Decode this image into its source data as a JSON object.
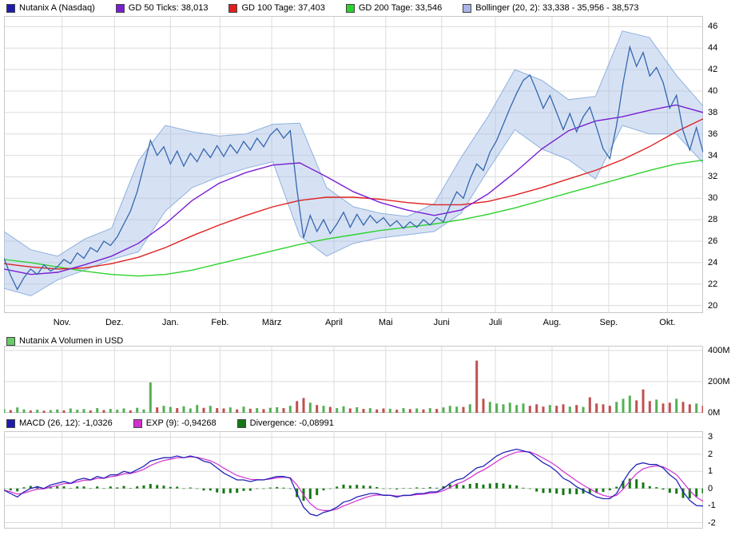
{
  "legend_price": {
    "items": [
      {
        "label": "Nutanix A (Nasdaq)",
        "color": "#1c1cb0"
      },
      {
        "label": "GD 50 Ticks: 38,013",
        "color": "#7a1ed2"
      },
      {
        "label": "GD 100 Tage: 37,403",
        "color": "#e02020"
      },
      {
        "label": "GD 200 Tage: 33,546",
        "color": "#2dd22d"
      },
      {
        "label": "Bollinger (20, 2): 33,338 - 35,956 - 38,573",
        "color": "#aab4e6"
      }
    ]
  },
  "legend_volume": {
    "items": [
      {
        "label": "Nutanix A Volumen in USD",
        "color": "#66cc66"
      }
    ]
  },
  "legend_macd": {
    "items": [
      {
        "label": "MACD (26, 12): -1,0326",
        "color": "#1c1cb0"
      },
      {
        "label": "EXP (9): -0,94268",
        "color": "#d030d0"
      },
      {
        "label": "Divergence: -0,08991",
        "color": "#157815"
      }
    ]
  },
  "chart_data": {
    "type": "line",
    "title": "Nutanix A (Nasdaq) chart with GD50/GD100/GD200, Bollinger bands, volume and MACD",
    "grid_color": "#dcdcdc",
    "border_color": "#c8c8c8",
    "months": [
      {
        "label": "Nov.",
        "f": 0.083
      },
      {
        "label": "Dez.",
        "f": 0.158
      },
      {
        "label": "Jan.",
        "f": 0.238
      },
      {
        "label": "Feb.",
        "f": 0.309
      },
      {
        "label": "März",
        "f": 0.383
      },
      {
        "label": "April",
        "f": 0.472
      },
      {
        "label": "Mai",
        "f": 0.546
      },
      {
        "label": "Juni",
        "f": 0.626
      },
      {
        "label": "Juli",
        "f": 0.703
      },
      {
        "label": "Aug.",
        "f": 0.784
      },
      {
        "label": "Sep.",
        "f": 0.865
      },
      {
        "label": "Okt.",
        "f": 0.949
      }
    ],
    "panels": {
      "price": {
        "ylim": [
          19.3,
          47.0
        ],
        "yticks": [
          {
            "v": 46,
            "label": "46"
          },
          {
            "v": 44,
            "label": "44"
          },
          {
            "v": 42,
            "label": "42"
          },
          {
            "v": 40,
            "label": "40"
          },
          {
            "v": 38,
            "label": "38"
          },
          {
            "v": 36,
            "label": "36"
          },
          {
            "v": 34,
            "label": "34"
          },
          {
            "v": 32,
            "label": "32"
          },
          {
            "v": 30,
            "label": "30"
          },
          {
            "v": 28,
            "label": "28"
          },
          {
            "v": 26,
            "label": "26"
          },
          {
            "v": 24,
            "label": "24"
          },
          {
            "v": 22,
            "label": "22"
          },
          {
            "v": 20,
            "label": "20"
          }
        ],
        "colors": {
          "price": "#3566ad",
          "gd50": "#7a1ed2",
          "gd100": "#e02020",
          "gd200": "#2dd22d",
          "boll_fill": "#a5bee6",
          "boll_edge": "#8fb0dd"
        },
        "series": {
          "price": [
            24.4,
            22.8,
            21.5,
            22.6,
            23.4,
            22.9,
            23.8,
            23.2,
            23.6,
            24.3,
            23.9,
            24.9,
            24.4,
            25.4,
            25.0,
            26.0,
            25.6,
            26.4,
            27.6,
            28.8,
            30.6,
            33.0,
            35.4,
            34.0,
            34.8,
            33.2,
            34.4,
            33.0,
            34.2,
            33.4,
            34.6,
            33.8,
            34.9,
            33.9,
            35.0,
            34.2,
            35.3,
            34.5,
            35.6,
            34.8,
            35.9,
            36.5,
            35.6,
            36.3,
            30.8,
            26.3,
            28.4,
            26.9,
            28.0,
            26.7,
            27.6,
            28.7,
            27.3,
            28.5,
            27.5,
            28.4,
            27.7,
            28.2,
            27.4,
            27.9,
            27.2,
            27.8,
            27.3,
            28.0,
            27.5,
            28.2,
            27.8,
            29.3,
            30.6,
            30.0,
            31.8,
            33.2,
            32.6,
            34.3,
            35.4,
            36.9,
            38.4,
            39.8,
            41.0,
            41.5,
            40.0,
            38.4,
            39.6,
            38.0,
            36.4,
            37.9,
            36.2,
            37.6,
            38.5,
            36.6,
            34.6,
            33.7,
            36.8,
            40.8,
            44.1,
            42.3,
            43.6,
            41.4,
            42.2,
            40.8,
            38.4,
            39.6,
            36.3,
            34.5,
            36.6,
            34.3
          ],
          "gd50": [
            23.4,
            22.9,
            23.1,
            23.8,
            24.6,
            25.8,
            27.6,
            29.8,
            31.4,
            32.4,
            33.1,
            33.3,
            32.0,
            30.6,
            29.6,
            28.9,
            28.4,
            28.9,
            30.4,
            32.4,
            34.6,
            36.3,
            37.2,
            37.6,
            38.2,
            38.7,
            38.0
          ],
          "gd100": [
            23.9,
            23.6,
            23.4,
            23.5,
            23.9,
            24.5,
            25.4,
            26.5,
            27.5,
            28.4,
            29.2,
            29.8,
            30.1,
            30.1,
            29.9,
            29.6,
            29.4,
            29.4,
            29.7,
            30.3,
            31.0,
            31.8,
            32.6,
            33.6,
            34.8,
            36.2,
            37.4
          ],
          "gd200": [
            24.3,
            24.0,
            23.6,
            23.2,
            22.9,
            22.75,
            22.9,
            23.3,
            23.9,
            24.5,
            25.1,
            25.7,
            26.2,
            26.6,
            27.0,
            27.3,
            27.6,
            28.0,
            28.5,
            29.1,
            29.8,
            30.5,
            31.2,
            31.9,
            32.6,
            33.2,
            33.55
          ],
          "boll_upper": [
            26.9,
            25.2,
            24.6,
            26.2,
            27.2,
            33.5,
            36.8,
            36.2,
            35.8,
            36.0,
            36.9,
            37.0,
            31.0,
            29.2,
            28.6,
            28.3,
            29.5,
            33.8,
            37.6,
            42.0,
            41.0,
            39.2,
            39.5,
            45.6,
            45.0,
            41.5,
            38.6
          ],
          "boll_lower": [
            21.6,
            20.9,
            22.4,
            23.3,
            24.3,
            25.0,
            28.8,
            31.0,
            32.0,
            32.8,
            33.4,
            26.5,
            24.6,
            25.8,
            26.3,
            26.6,
            26.9,
            28.6,
            32.6,
            36.4,
            34.6,
            33.6,
            31.8,
            36.8,
            36.0,
            36.0,
            33.3
          ]
        }
      },
      "volume": {
        "ylim": [
          0,
          430
        ],
        "yticks": [
          {
            "v": 400,
            "label": "400M"
          },
          {
            "v": 200,
            "label": "200M"
          },
          {
            "v": 0,
            "label": "0M"
          }
        ],
        "color_up": "#55b055",
        "color_down": "#c05050",
        "bars": [
          25,
          -18,
          35,
          22,
          -15,
          20,
          -14,
          18,
          22,
          -16,
          28,
          20,
          24,
          -15,
          30,
          -18,
          25,
          20,
          28,
          -16,
          32,
          22,
          195,
          -35,
          45,
          38,
          -30,
          42,
          28,
          50,
          -32,
          45,
          -30,
          -28,
          35,
          -22,
          40,
          -26,
          30,
          -24,
          32,
          36,
          -30,
          45,
          -75,
          -95,
          65,
          -50,
          45,
          -38,
          30,
          42,
          -28,
          36,
          -25,
          30,
          -22,
          -28,
          26,
          -20,
          30,
          -24,
          28,
          -22,
          30,
          -25,
          35,
          45,
          40,
          -38,
          55,
          -335,
          -90,
          70,
          60,
          55,
          65,
          50,
          60,
          -45,
          -55,
          -40,
          50,
          -45,
          -55,
          40,
          -50,
          38,
          -100,
          -60,
          -55,
          -45,
          70,
          90,
          110,
          -80,
          -150,
          -75,
          85,
          -60,
          -65,
          90,
          -70,
          -55,
          60,
          -45
        ]
      },
      "macd": {
        "ylim": [
          -2.35,
          3.35
        ],
        "yticks": [
          {
            "v": 3,
            "label": "3"
          },
          {
            "v": 2,
            "label": "2"
          },
          {
            "v": 1,
            "label": "1"
          },
          {
            "v": 0,
            "label": "0"
          },
          {
            "v": -1,
            "label": "-1"
          },
          {
            "v": -2,
            "label": "-2"
          }
        ],
        "signal_alpha": 0.45,
        "colors": {
          "macd": "#2222b8",
          "signal": "#d030d0",
          "divergence": "#157815"
        },
        "macd": [
          -0.1,
          -0.3,
          -0.5,
          -0.2,
          0.0,
          0.1,
          0.0,
          0.2,
          0.3,
          0.4,
          0.3,
          0.5,
          0.6,
          0.5,
          0.7,
          0.6,
          0.8,
          0.8,
          1.0,
          0.9,
          1.1,
          1.3,
          1.6,
          1.7,
          1.8,
          1.8,
          1.9,
          1.8,
          1.9,
          1.8,
          1.6,
          1.5,
          1.2,
          0.9,
          0.7,
          0.5,
          0.5,
          0.4,
          0.5,
          0.5,
          0.6,
          0.7,
          0.7,
          0.6,
          -0.3,
          -1.1,
          -1.5,
          -1.6,
          -1.4,
          -1.3,
          -1.1,
          -0.8,
          -0.7,
          -0.5,
          -0.4,
          -0.3,
          -0.3,
          -0.4,
          -0.4,
          -0.5,
          -0.4,
          -0.4,
          -0.3,
          -0.3,
          -0.2,
          -0.2,
          0.0,
          0.3,
          0.5,
          0.6,
          0.9,
          1.2,
          1.3,
          1.6,
          1.9,
          2.1,
          2.2,
          2.3,
          2.2,
          2.1,
          1.8,
          1.5,
          1.3,
          1.0,
          0.6,
          0.4,
          0.1,
          -0.1,
          -0.3,
          -0.5,
          -0.6,
          -0.6,
          -0.3,
          0.4,
          1.0,
          1.4,
          1.5,
          1.4,
          1.4,
          1.2,
          0.8,
          0.5,
          -0.2,
          -0.7,
          -1.0,
          -1.03
        ]
      }
    }
  }
}
